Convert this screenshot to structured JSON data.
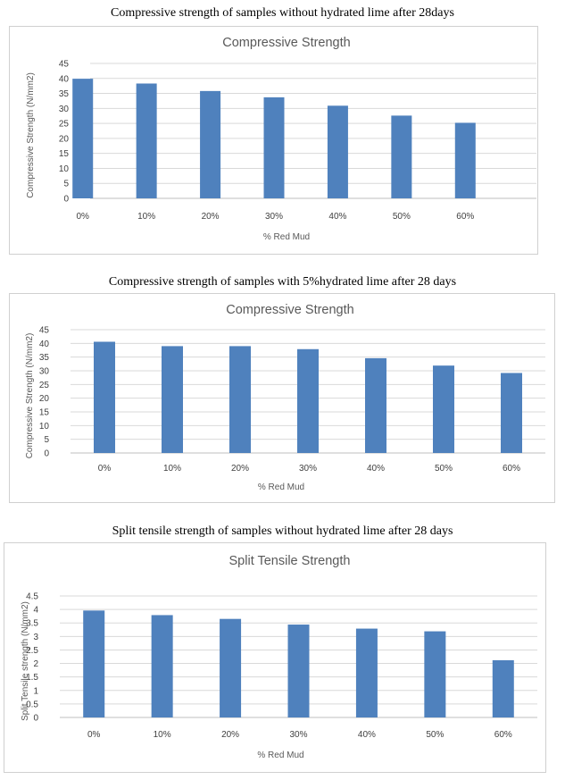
{
  "colors": {
    "bar": "#4f81bd",
    "grid": "#d9d9d9",
    "axis": "#bfbfbf"
  },
  "captions": [
    "Compressive strength of samples without hydrated lime after 28days",
    "Compressive strength of samples with 5%hydrated lime after 28 days",
    "Split tensile strength of samples without hydrated lime after 28 days"
  ],
  "chart_data": [
    {
      "type": "bar",
      "title": "Compressive Strength",
      "xlabel": "% Red Mud",
      "ylabel": "Compressive Strength (N/mm2)",
      "categories": [
        "0%",
        "10%",
        "20%",
        "30%",
        "40%",
        "50%",
        "60%"
      ],
      "values": [
        39.9,
        38.3,
        35.8,
        33.7,
        30.9,
        27.6,
        25.2
      ],
      "ylim": [
        0,
        45
      ],
      "ytick_step": 5,
      "yticks": [
        "0",
        "5",
        "10",
        "15",
        "20",
        "25",
        "30",
        "35",
        "40",
        "45"
      ],
      "grid": true,
      "legend": "none"
    },
    {
      "type": "bar",
      "title": "Compressive Strength",
      "xlabel": "% Red Mud",
      "ylabel": "Compressive Strength (N/mm2)",
      "categories": [
        "0%",
        "10%",
        "20%",
        "30%",
        "40%",
        "50%",
        "60%"
      ],
      "values": [
        40.6,
        39.0,
        39.0,
        37.9,
        34.6,
        31.9,
        29.2
      ],
      "ylim": [
        0,
        45
      ],
      "ytick_step": 5,
      "yticks": [
        "0",
        "5",
        "10",
        "15",
        "20",
        "25",
        "30",
        "35",
        "40",
        "45"
      ],
      "grid": true,
      "legend": "none"
    },
    {
      "type": "bar",
      "title": "Split Tensile Strength",
      "xlabel": "% Red Mud",
      "ylabel": "Split Tensile strength (N/mm2)",
      "categories": [
        "0%",
        "10%",
        "20%",
        "30%",
        "40%",
        "50%",
        "60%"
      ],
      "values": [
        3.96,
        3.79,
        3.65,
        3.44,
        3.29,
        3.19,
        2.12
      ],
      "ylim": [
        0,
        4.5
      ],
      "ytick_step": 0.5,
      "yticks": [
        "0",
        "0.5",
        "1",
        "1.5",
        "2",
        "2.5",
        "3",
        "3.5",
        "4",
        "4.5"
      ],
      "grid": true,
      "legend": "none"
    }
  ]
}
